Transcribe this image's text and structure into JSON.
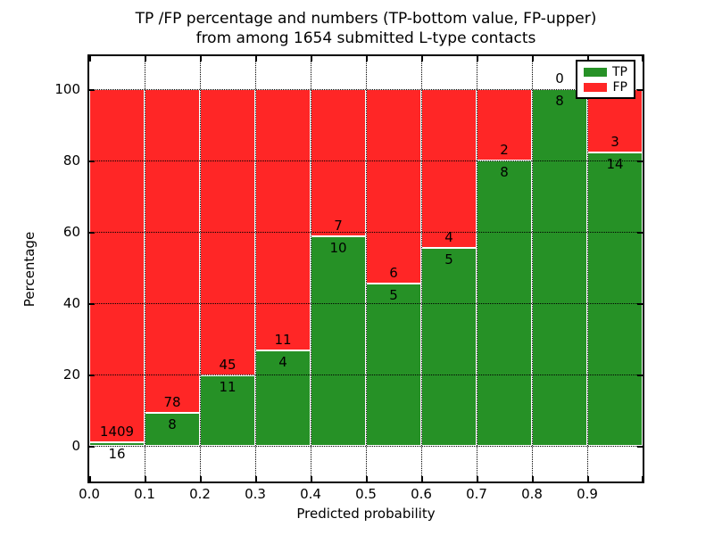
{
  "figure": {
    "title_line1": "TP /FP percentage and numbers (TP-bottom value, FP-upper)",
    "title_line2": "from among 1654 submitted L-type contacts"
  },
  "chart_data": {
    "type": "bar",
    "stacked": true,
    "normalized": "each bin scaled to percent of bin total",
    "title": "TP /FP percentage and numbers (TP-bottom value, FP-upper) from among 1654 submitted L-type contacts",
    "xlabel": "Predicted probability",
    "ylabel": "Percentage",
    "total_contacts": 1654,
    "bins": [
      "0.0-0.1",
      "0.1-0.2",
      "0.2-0.3",
      "0.3-0.4",
      "0.4-0.5",
      "0.5-0.6",
      "0.6-0.7",
      "0.7-0.8",
      "0.8-0.9",
      "0.9-1.0"
    ],
    "series": [
      {
        "name": "TP",
        "color": "#269126",
        "values": [
          16,
          8,
          11,
          4,
          10,
          5,
          5,
          8,
          8,
          14
        ],
        "label_position": "below segment boundary (bottom value)"
      },
      {
        "name": "FP",
        "color": "#ff2626",
        "values": [
          1409,
          78,
          45,
          11,
          7,
          6,
          4,
          2,
          0,
          3
        ],
        "label_position": "above segment boundary (upper value)"
      }
    ],
    "xticks": [
      "0.0",
      "0.1",
      "0.2",
      "0.3",
      "0.4",
      "0.5",
      "0.6",
      "0.7",
      "0.8",
      "0.9"
    ],
    "yticks": [
      0,
      20,
      40,
      60,
      80,
      100
    ],
    "xlim": [
      0.0,
      1.0
    ],
    "ylim": [
      -10,
      109
    ],
    "grid": "black dotted, drawn over bars",
    "legend": {
      "position": "upper right",
      "entries": [
        "TP",
        "FP"
      ]
    }
  },
  "colors": {
    "tp": "#269126",
    "fp": "#ff2626",
    "bar_edge": "#ffffff",
    "grid": "#000000",
    "text": "#000000",
    "background": "#ffffff"
  }
}
